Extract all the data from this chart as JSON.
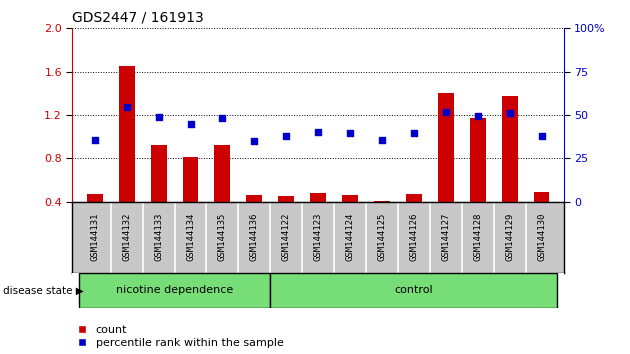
{
  "title": "GDS2447 / 161913",
  "samples": [
    "GSM144131",
    "GSM144132",
    "GSM144133",
    "GSM144134",
    "GSM144135",
    "GSM144136",
    "GSM144122",
    "GSM144123",
    "GSM144124",
    "GSM144125",
    "GSM144126",
    "GSM144127",
    "GSM144128",
    "GSM144129",
    "GSM144130"
  ],
  "bar_values": [
    0.47,
    1.65,
    0.92,
    0.81,
    0.92,
    0.46,
    0.45,
    0.48,
    0.46,
    0.41,
    0.47,
    1.4,
    1.17,
    1.38,
    0.49
  ],
  "dot_values": [
    0.97,
    1.27,
    1.18,
    1.12,
    1.17,
    0.96,
    1.01,
    1.04,
    1.03,
    0.97,
    1.03,
    1.23,
    1.19,
    1.22,
    1.01
  ],
  "bar_color": "#cc0000",
  "dot_color": "#0000cc",
  "nicotine_group": [
    0,
    1,
    2,
    3,
    4,
    5
  ],
  "control_group": [
    6,
    7,
    8,
    9,
    10,
    11,
    12,
    13,
    14
  ],
  "nicotine_label": "nicotine dependence",
  "control_label": "control",
  "disease_state_label": "disease state",
  "ylim_left": [
    0.4,
    2.0
  ],
  "ylim_right": [
    0,
    100
  ],
  "yticks_left": [
    0.4,
    0.8,
    1.2,
    1.6,
    2.0
  ],
  "yticks_right": [
    0,
    25,
    50,
    75,
    100
  ],
  "legend_count_label": "count",
  "legend_pct_label": "percentile rank within the sample",
  "background_color": "#ffffff",
  "nicotine_bg": "#77dd77",
  "control_bg": "#77dd77",
  "tick_label_color_left": "#cc0000",
  "tick_label_color_right": "#0000cc",
  "bar_bottom": 0.4,
  "gray_bg": "#c8c8c8"
}
